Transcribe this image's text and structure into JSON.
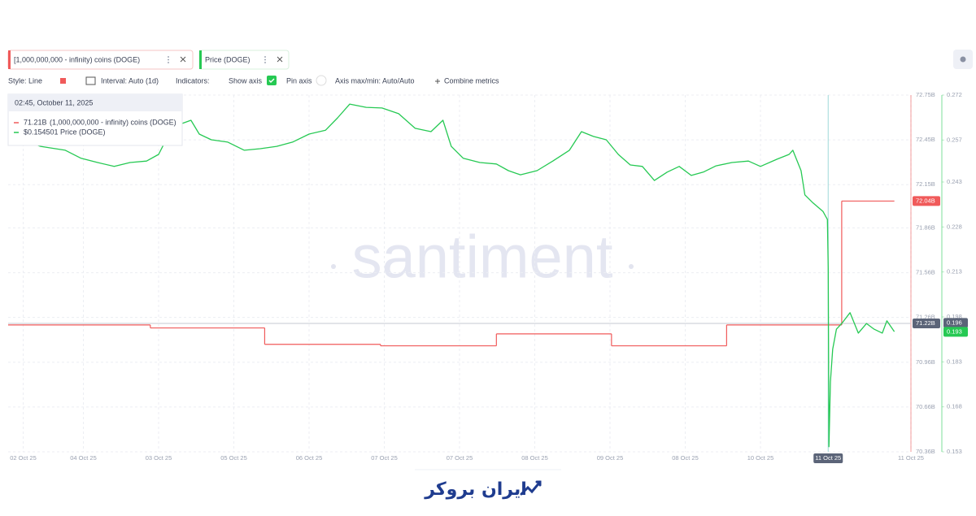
{
  "toolbar": {
    "metric_1": "[1,000,000,000 - infinity) coins (DOGE)",
    "metric_2": "Price (DOGE)",
    "style": "Style: Line",
    "interval": "Interval: Auto (1d)",
    "indicators": "Indicators:",
    "show_axis": "Show axis",
    "pin_axis": "Pin axis",
    "axis_minmax": "Axis max/min: Auto/Auto",
    "combine": "Combine metrics"
  },
  "tooltip": {
    "title": "02:45, October 11, 2025",
    "items": [
      {
        "value_label": "71.21B",
        "name": "(1,000,000,000 - infinity) coins (DOGE)"
      },
      {
        "value_label": "$0.154501",
        "name": "Price (DOGE)"
      }
    ]
  },
  "watermark": "santiment",
  "footer_logo": "ایران بروکر",
  "chart_data": {
    "type": "line",
    "xlim": [
      0,
      12
    ],
    "xticks": [
      {
        "value": 0.2,
        "label": "02 Oct 25"
      },
      {
        "value": 1,
        "label": "04 Oct 25"
      },
      {
        "value": 2,
        "label": "03 Oct 25"
      },
      {
        "value": 3,
        "label": "05 Oct 25"
      },
      {
        "value": 4,
        "label": "06 Oct 25"
      },
      {
        "value": 5,
        "label": "07 Oct 25"
      },
      {
        "value": 6,
        "label": "07 Oct 25"
      },
      {
        "value": 7,
        "label": "08 Oct 25"
      },
      {
        "value": 8,
        "label": "09 Oct 25"
      },
      {
        "value": 9,
        "label": "08 Oct 25"
      },
      {
        "value": 10,
        "label": "10 Oct 25"
      },
      {
        "value": 12,
        "label": "11 Oct 25"
      }
    ],
    "ylim": [
      70.36,
      72.75
    ],
    "yticks": [
      {
        "value": 72.75,
        "label": "72.75B"
      },
      {
        "value": 72.45,
        "label": "72.45B"
      },
      {
        "value": 72.15,
        "label": "72.15B"
      },
      {
        "value": 71.86,
        "label": "71.86B"
      },
      {
        "value": 71.56,
        "label": "71.56B"
      },
      {
        "value": 71.26,
        "label": "71.26B"
      },
      {
        "value": 70.96,
        "label": "70.96B"
      },
      {
        "value": 70.66,
        "label": "70.66B"
      },
      {
        "value": 70.36,
        "label": "70.36B"
      }
    ],
    "y2lim": [
      0.153,
      0.272
    ],
    "y2ticks": [
      0.272,
      0.257,
      0.243,
      0.228,
      0.213,
      0.198,
      0.183,
      0.168,
      0.153
    ],
    "grid": true,
    "crosshair": {
      "x": {
        "value": 10.9,
        "label": "11 Oct 25"
      },
      "y": {
        "value": 71.22,
        "label": "71.22B"
      },
      "y2": 0.196
    },
    "series": [
      {
        "name": "[1,000,000,000 - infinity) coins (DOGE)",
        "color": "#f05a5a",
        "axis": "y",
        "step": true,
        "x": [
          0,
          1.89,
          3.41,
          4.95,
          6.49,
          8.02,
          9.55,
          11.08,
          11.78
        ],
        "values": [
          71.21,
          71.19,
          71.08,
          71.07,
          71.15,
          71.07,
          71.21,
          72.04,
          72.04
        ],
        "last_value_tag": {
          "value": 72.04,
          "label": "72.04B"
        }
      },
      {
        "name": "Price (DOGE)",
        "color": "#26c953",
        "axis": "y2",
        "x": [
          0,
          0.43,
          0.76,
          0.97,
          1.19,
          1.41,
          1.62,
          1.84,
          2.0,
          2.11,
          2.22,
          2.43,
          2.54,
          2.7,
          2.92,
          3.14,
          3.35,
          3.57,
          3.78,
          4.0,
          4.22,
          4.38,
          4.54,
          4.76,
          4.97,
          5.19,
          5.41,
          5.62,
          5.78,
          5.89,
          6.05,
          6.27,
          6.49,
          6.65,
          6.81,
          7.03,
          7.24,
          7.46,
          7.62,
          7.78,
          7.95,
          8.11,
          8.27,
          8.43,
          8.59,
          8.76,
          8.92,
          9.08,
          9.24,
          9.41,
          9.62,
          9.84,
          10.0,
          10.22,
          10.38,
          10.43,
          10.54,
          10.59,
          10.7,
          10.83,
          10.89,
          10.9,
          10.91,
          10.93,
          10.96,
          11.01,
          11.08,
          11.19,
          11.3,
          11.41,
          11.51,
          11.62,
          11.68,
          11.78
        ],
        "values": [
          0.259,
          0.2549,
          0.2536,
          0.2509,
          0.2495,
          0.2482,
          0.2495,
          0.25,
          0.2522,
          0.2576,
          0.2617,
          0.2636,
          0.259,
          0.2571,
          0.2563,
          0.2536,
          0.2541,
          0.2549,
          0.2563,
          0.259,
          0.2603,
          0.2644,
          0.269,
          0.2679,
          0.2677,
          0.2658,
          0.2609,
          0.2598,
          0.2636,
          0.2549,
          0.2509,
          0.2495,
          0.249,
          0.2468,
          0.2454,
          0.2468,
          0.25,
          0.2536,
          0.2598,
          0.2582,
          0.2571,
          0.2522,
          0.2487,
          0.2482,
          0.2435,
          0.2463,
          0.2482,
          0.2452,
          0.2463,
          0.2484,
          0.2495,
          0.25,
          0.2482,
          0.2506,
          0.2522,
          0.2536,
          0.2468,
          0.2387,
          0.236,
          0.2332,
          0.2305,
          0.2143,
          0.1547,
          0.1763,
          0.1872,
          0.1939,
          0.1958,
          0.1994,
          0.1926,
          0.1958,
          0.1939,
          0.1926,
          0.1967,
          0.1931
        ],
        "last_value_tag": 0.193
      }
    ]
  }
}
